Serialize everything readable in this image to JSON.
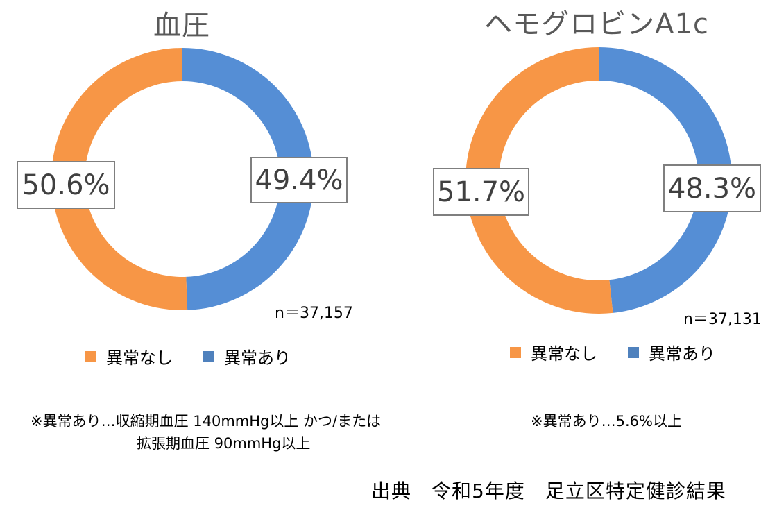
{
  "chart_data": [
    {
      "type": "pie",
      "subtype": "donut",
      "title": "血圧",
      "categories": [
        "異常なし",
        "異常あり"
      ],
      "values": [
        50.6,
        49.4
      ],
      "value_labels": [
        "50.6%",
        "49.4%"
      ],
      "colors": [
        "#F79646",
        "#558ED5"
      ],
      "n": "n＝37,157",
      "legend": [
        "異常なし",
        "異常あり"
      ],
      "legend_position": "bottom",
      "note": [
        "※異常あり…収縮期血圧 140mmHg以上 かつ/または",
        "拡張期血圧 90mmHg以上"
      ]
    },
    {
      "type": "pie",
      "subtype": "donut",
      "title": "ヘモグロビンA1c",
      "categories": [
        "異常なし",
        "異常あり"
      ],
      "values": [
        51.7,
        48.3
      ],
      "value_labels": [
        "51.7%",
        "48.3%"
      ],
      "colors": [
        "#F79646",
        "#558ED5"
      ],
      "n": "n＝37,131",
      "legend": [
        "異常なし",
        "異常あり"
      ],
      "legend_position": "bottom",
      "note": [
        "※異常あり…5.6%以上"
      ]
    }
  ],
  "charts": {
    "bp": {
      "title": "血圧",
      "label_normal": "50.6%",
      "label_abnormal": "49.4%",
      "n": "n＝37,157",
      "legend_normal": "異常なし",
      "legend_abnormal": "異常あり",
      "note_line1": "※異常あり…収縮期血圧 140mmHg以上 かつ/または",
      "note_line2": "拡張期血圧 90mmHg以上"
    },
    "hba1c": {
      "title": "ヘモグロビンA1c",
      "label_normal": "51.7%",
      "label_abnormal": "48.3%",
      "n": "n＝37,131",
      "legend_normal": "異常なし",
      "legend_abnormal": "異常あり",
      "note_line1": "※異常あり…5.6%以上"
    }
  },
  "colors": {
    "normal": "#F79646",
    "abnormal": "#558ED5",
    "title_text": "#595959",
    "label_text": "#404040",
    "label_border": "#7F7F7F"
  },
  "source": "出典　令和5年度　足立区特定健診結果"
}
